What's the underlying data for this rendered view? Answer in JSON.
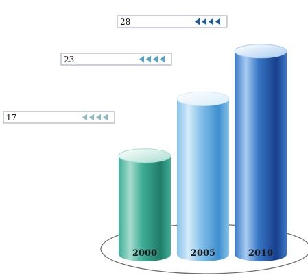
{
  "chart_data": {
    "type": "bar",
    "categories": [
      "2000",
      "2005",
      "2010"
    ],
    "values": [
      17,
      23,
      28
    ],
    "title": "",
    "xlabel": "",
    "ylabel": "",
    "grid": false,
    "legend": "none",
    "style": "3d-cylinder",
    "colors": {
      "bars": [
        {
          "light": "#a8ddd0",
          "mid": "#3fae97",
          "dark": "#1f7c68"
        },
        {
          "light": "#d6ebfa",
          "mid": "#88c2ea",
          "dark": "#3f8fcf"
        },
        {
          "light": "#a9cdf2",
          "mid": "#3a78c6",
          "dark": "#173f8d"
        }
      ],
      "arrow_colors": [
        "#8bbdbe",
        "#5aa3c8",
        "#1b5da0"
      ],
      "value_box_border": "#9aa3b3",
      "ellipse_stroke": "#6d6d6d"
    }
  }
}
